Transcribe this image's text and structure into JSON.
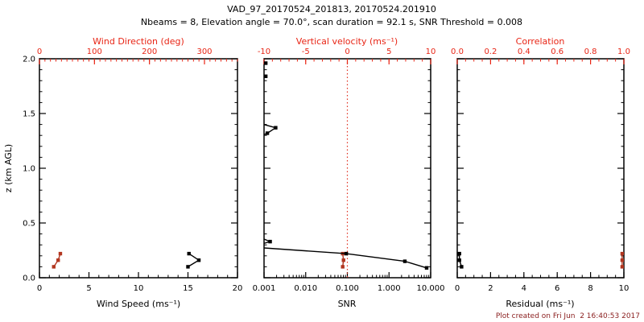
{
  "header": {
    "title": "VAD_97_20170524_201813, 20170524.201910",
    "subtitle": "Nbeams = 8, Elevation angle = 70.0°, scan duration = 92.1 s, SNR Threshold = 0.008"
  },
  "footer": {
    "created": "Plot created on Fri Jun  2 16:40:53 2017"
  },
  "colors": {
    "axis_red": "#e82515",
    "data_red": "#b23620",
    "black": "#000000",
    "footer_red": "#8b2020",
    "refline_red": "#e03020"
  },
  "chart_data": [
    {
      "type": "scatter",
      "name": "wind-panel",
      "y_axis": {
        "label": "z (km AGL)",
        "range": [
          0,
          2
        ],
        "minor_step": 0.1,
        "show_labels": true,
        "ticks": [
          {
            "v": 0.0,
            "label": "0.0"
          },
          {
            "v": 0.5,
            "label": "0.5"
          },
          {
            "v": 1.0,
            "label": "1.0"
          },
          {
            "v": 1.5,
            "label": "1.5"
          },
          {
            "v": 2.0,
            "label": "2.0"
          }
        ]
      },
      "bottom_axis": {
        "label": "Wind Speed (ms⁻¹)",
        "scale": "linear",
        "range": [
          0,
          20
        ],
        "minor_step": 1,
        "color": "black",
        "ticks": [
          {
            "v": 0,
            "label": "0"
          },
          {
            "v": 5,
            "label": "5"
          },
          {
            "v": 10,
            "label": "10"
          },
          {
            "v": 15,
            "label": "15"
          },
          {
            "v": 20,
            "label": "20"
          }
        ]
      },
      "top_axis": {
        "label": "Wind Direction (deg)",
        "scale": "linear",
        "range": [
          0,
          360
        ],
        "minor_step": 10,
        "color": "red",
        "ticks": [
          {
            "v": 0,
            "label": "0"
          },
          {
            "v": 100,
            "label": "100"
          },
          {
            "v": 200,
            "label": "200"
          },
          {
            "v": 300,
            "label": "300"
          }
        ]
      },
      "series": [
        {
          "name": "wind-direction",
          "axis": "top",
          "color": "red",
          "points": [
            [
              26,
              0.1
            ],
            [
              34,
              0.16
            ],
            [
              38,
              0.22
            ]
          ]
        },
        {
          "name": "wind-speed",
          "axis": "bottom",
          "color": "black",
          "points": [
            [
              15.0,
              0.1
            ],
            [
              16.1,
              0.16
            ],
            [
              15.1,
              0.22
            ]
          ]
        }
      ]
    },
    {
      "type": "scatter",
      "name": "snr-panel",
      "y_axis": {
        "label": "",
        "range": [
          0,
          2
        ],
        "minor_step": 0.1,
        "show_labels": false,
        "ticks": [
          {
            "v": 0.0,
            "label": ""
          },
          {
            "v": 0.5,
            "label": ""
          },
          {
            "v": 1.0,
            "label": ""
          },
          {
            "v": 1.5,
            "label": ""
          },
          {
            "v": 2.0,
            "label": ""
          }
        ]
      },
      "bottom_axis": {
        "label": "SNR",
        "scale": "log",
        "range": [
          0.001,
          10
        ],
        "color": "black",
        "ticks": [
          {
            "v": 0.001,
            "label": "0.001"
          },
          {
            "v": 0.01,
            "label": "0.010"
          },
          {
            "v": 0.1,
            "label": "0.100"
          },
          {
            "v": 1,
            "label": "1.000"
          },
          {
            "v": 10,
            "label": "10.000"
          }
        ]
      },
      "top_axis": {
        "label": "Vertical velocity (ms⁻¹)",
        "scale": "linear",
        "range": [
          -10,
          10
        ],
        "minor_step": 1,
        "color": "red",
        "ticks": [
          {
            "v": -10,
            "label": "-10"
          },
          {
            "v": -5,
            "label": "-5"
          },
          {
            "v": 0,
            "label": "0"
          },
          {
            "v": 5,
            "label": "5"
          },
          {
            "v": 10,
            "label": "10"
          }
        ]
      },
      "refline": {
        "axis": "top",
        "value": 0,
        "style": "dotted",
        "color": "red"
      },
      "series": [
        {
          "name": "vertical-velocity",
          "axis": "top",
          "color": "red",
          "points": [
            [
              -0.56,
              0.1
            ],
            [
              -0.46,
              0.16
            ],
            [
              -0.56,
              0.22
            ]
          ]
        },
        {
          "name": "snr-profile",
          "axis": "bottom",
          "color": "black",
          "points": [
            [
              8.0,
              0.09
            ],
            [
              2.4,
              0.15
            ],
            [
              0.094,
              0.22
            ],
            [
              0.0005,
              0.28
            ],
            [
              0.0014,
              0.33
            ],
            [
              0.0005,
              0.4
            ],
            [
              0.0005,
              1.26
            ],
            [
              0.0012,
              1.32
            ],
            [
              0.0019,
              1.37
            ],
            [
              0.0005,
              1.43
            ],
            [
              0.0005,
              1.79
            ],
            [
              0.0011,
              1.84
            ],
            [
              0.0005,
              1.9
            ],
            [
              0.0011,
              1.96
            ]
          ]
        }
      ]
    },
    {
      "type": "scatter",
      "name": "residual-panel",
      "y_axis": {
        "label": "",
        "range": [
          0,
          2
        ],
        "minor_step": 0.1,
        "show_labels": false,
        "ticks": [
          {
            "v": 0.0,
            "label": ""
          },
          {
            "v": 0.5,
            "label": ""
          },
          {
            "v": 1.0,
            "label": ""
          },
          {
            "v": 1.5,
            "label": ""
          },
          {
            "v": 2.0,
            "label": ""
          }
        ]
      },
      "bottom_axis": {
        "label": "Residual (ms⁻¹)",
        "scale": "linear",
        "range": [
          0,
          10
        ],
        "minor_step": 0.5,
        "color": "black",
        "ticks": [
          {
            "v": 0,
            "label": "0"
          },
          {
            "v": 2,
            "label": "2"
          },
          {
            "v": 4,
            "label": "4"
          },
          {
            "v": 6,
            "label": "6"
          },
          {
            "v": 8,
            "label": "8"
          },
          {
            "v": 10,
            "label": "10"
          }
        ]
      },
      "top_axis": {
        "label": "Correlation",
        "scale": "linear",
        "range": [
          0,
          1
        ],
        "minor_step": 0.05,
        "color": "red",
        "ticks": [
          {
            "v": 0.0,
            "label": "0.0"
          },
          {
            "v": 0.2,
            "label": "0.2"
          },
          {
            "v": 0.4,
            "label": "0.4"
          },
          {
            "v": 0.6,
            "label": "0.6"
          },
          {
            "v": 0.8,
            "label": "0.8"
          },
          {
            "v": 1.0,
            "label": "1.0"
          }
        ]
      },
      "series": [
        {
          "name": "correlation",
          "axis": "top",
          "color": "red",
          "points": [
            [
              0.99,
              0.1
            ],
            [
              0.99,
              0.16
            ],
            [
              0.99,
              0.22
            ]
          ]
        },
        {
          "name": "residual",
          "axis": "bottom",
          "color": "black",
          "points": [
            [
              0.26,
              0.1
            ],
            [
              0.13,
              0.16
            ],
            [
              0.13,
              0.22
            ]
          ]
        }
      ]
    }
  ]
}
